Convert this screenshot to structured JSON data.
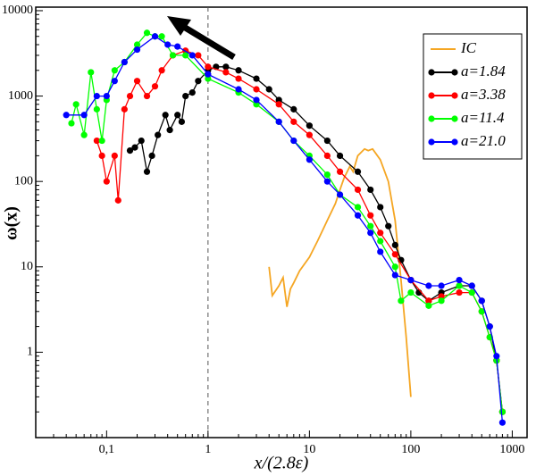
{
  "chart_data": {
    "type": "line",
    "xlabel": "x/(2.8ε)",
    "ylabel": "ω(x)",
    "xscale": "log",
    "yscale": "log",
    "xlim": [
      0.02,
      1400
    ],
    "ylim": [
      0.1,
      11000
    ],
    "xticks": [
      {
        "value": 0.1,
        "label": "0,1"
      },
      1,
      10,
      100,
      1000
    ],
    "yticks": [
      1,
      10,
      100,
      1000,
      10000
    ],
    "vlines": [
      1
    ],
    "legend": "upper right",
    "series": [
      {
        "name": "IC",
        "color": "#f5a623",
        "markers": false,
        "x": [
          4,
          4.3,
          5,
          5.5,
          6,
          6.5,
          7,
          8,
          10,
          12,
          15,
          18,
          20,
          22,
          25,
          27,
          30,
          35,
          38,
          42,
          50,
          60,
          70,
          80,
          90,
          100
        ],
        "values": [
          10,
          4.6,
          6,
          7.5,
          3.4,
          5.5,
          6.5,
          9,
          13,
          20,
          35,
          55,
          80,
          110,
          150,
          130,
          200,
          240,
          230,
          240,
          180,
          100,
          35,
          7,
          1.5,
          0.3
        ]
      },
      {
        "name": "a=1.84",
        "color": "#000000",
        "markers": true,
        "x": [
          0.17,
          0.19,
          0.22,
          0.25,
          0.28,
          0.32,
          0.38,
          0.42,
          0.5,
          0.55,
          0.6,
          0.7,
          0.8,
          1,
          1.2,
          1.5,
          2,
          3,
          4,
          5,
          7,
          10,
          15,
          20,
          30,
          40,
          50,
          60,
          70,
          80,
          100,
          120,
          150,
          200,
          300,
          400,
          500,
          600,
          700,
          800
        ],
        "values": [
          230,
          250,
          300,
          130,
          200,
          350,
          600,
          400,
          600,
          500,
          1000,
          1100,
          1500,
          2000,
          2200,
          2200,
          2000,
          1600,
          1200,
          900,
          700,
          450,
          300,
          200,
          130,
          80,
          50,
          30,
          18,
          12,
          7,
          5,
          4,
          5,
          6,
          6,
          4,
          2,
          0.8,
          0.2
        ]
      },
      {
        "name": "a=3.38",
        "color": "#ff0000",
        "markers": true,
        "x": [
          0.08,
          0.09,
          0.1,
          0.12,
          0.13,
          0.15,
          0.17,
          0.2,
          0.25,
          0.3,
          0.35,
          0.45,
          0.6,
          0.8,
          1,
          1.5,
          2,
          3,
          5,
          7,
          10,
          15,
          20,
          30,
          40,
          50,
          70,
          100,
          150,
          200,
          300,
          400,
          500,
          600,
          700,
          800
        ],
        "values": [
          300,
          200,
          100,
          200,
          60,
          700,
          1000,
          1500,
          1000,
          1300,
          2000,
          3000,
          3400,
          3000,
          2200,
          1900,
          1600,
          1200,
          800,
          500,
          350,
          200,
          130,
          80,
          40,
          25,
          14,
          7,
          4,
          4.5,
          5,
          5,
          3,
          1.5,
          0.8,
          0.2
        ]
      },
      {
        "name": "a=11.4",
        "color": "#00ff00",
        "markers": true,
        "x": [
          0.045,
          0.05,
          0.06,
          0.07,
          0.08,
          0.09,
          0.1,
          0.12,
          0.15,
          0.2,
          0.25,
          0.3,
          0.35,
          0.45,
          0.6,
          1,
          2,
          3,
          5,
          7,
          10,
          15,
          20,
          30,
          40,
          50,
          70,
          80,
          100,
          150,
          200,
          300,
          400,
          500,
          600,
          700,
          800
        ],
        "values": [
          480,
          800,
          350,
          1900,
          700,
          300,
          900,
          2000,
          2500,
          4000,
          5500,
          5000,
          5000,
          3000,
          3000,
          1600,
          1100,
          800,
          500,
          300,
          200,
          120,
          70,
          50,
          30,
          20,
          10,
          4,
          5,
          3.5,
          4,
          6,
          5,
          3,
          1.5,
          0.8,
          0.2
        ]
      },
      {
        "name": "a=21.0",
        "color": "#0000ff",
        "markers": true,
        "x": [
          0.04,
          0.06,
          0.08,
          0.1,
          0.12,
          0.15,
          0.2,
          0.3,
          0.4,
          0.5,
          0.7,
          1,
          2,
          3,
          5,
          7,
          10,
          15,
          20,
          30,
          40,
          50,
          70,
          100,
          150,
          200,
          300,
          400,
          500,
          600,
          700,
          800
        ],
        "values": [
          600,
          600,
          1000,
          1000,
          1500,
          2500,
          3500,
          5000,
          4000,
          3800,
          3000,
          1800,
          1200,
          900,
          500,
          300,
          180,
          100,
          70,
          40,
          25,
          15,
          8,
          7,
          6,
          6,
          7,
          6,
          4,
          2,
          0.9,
          0.15
        ]
      }
    ]
  }
}
